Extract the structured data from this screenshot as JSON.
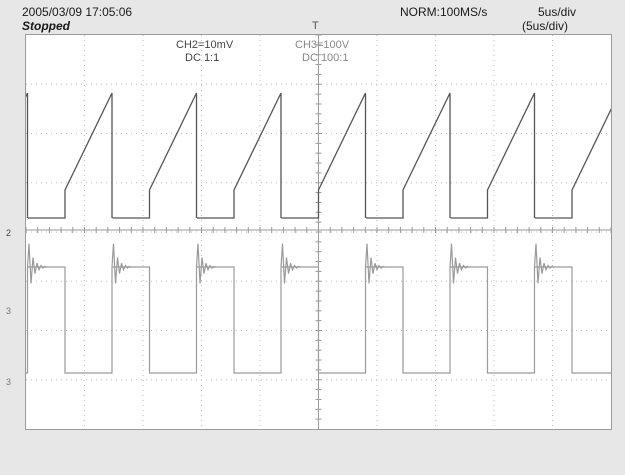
{
  "header": {
    "timestamp": "2005/03/09  17:05:06",
    "run_state": "Stopped",
    "sample_rate": "NORM:100MS/s",
    "timebase": "5us/div",
    "timebase_sub": "(5us/div)"
  },
  "channels": {
    "ch2": {
      "label": "CH2=10mV",
      "coupling": "DC  1:1",
      "color": "#555555"
    },
    "ch3": {
      "label": "CH3=100V",
      "coupling": "DC  100:1",
      "color": "#9a9a9a"
    }
  },
  "markers": {
    "ch2_ground": "2",
    "ch3_level": "3",
    "trigger": "T"
  },
  "grid": {
    "divisions_x": 10,
    "divisions_y": 8,
    "color": "#bdbdbd"
  },
  "waveform": {
    "periods_visible": 7,
    "ch2_shape": "sawtooth",
    "ch3_shape": "square-with-ringing"
  }
}
